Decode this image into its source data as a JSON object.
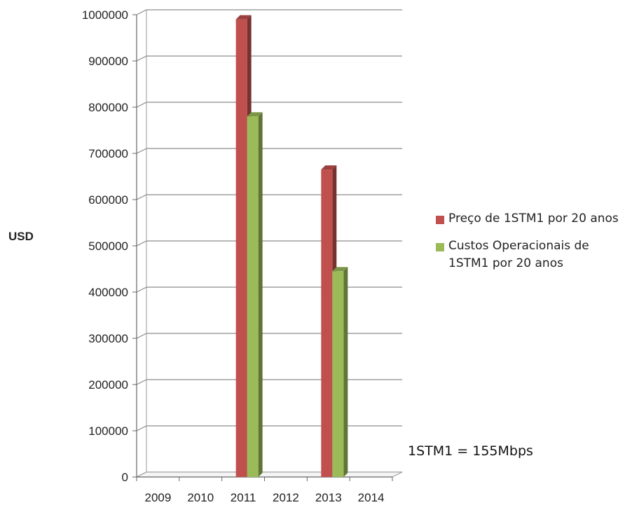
{
  "chart_data": {
    "type": "bar",
    "categories": [
      "2009",
      "2010",
      "2011",
      "2012",
      "2013",
      "2014"
    ],
    "ylabel": "USD",
    "xlabel": "",
    "ylim": [
      0,
      1000000
    ],
    "yticks": [
      0,
      100000,
      200000,
      300000,
      400000,
      500000,
      600000,
      700000,
      800000,
      900000,
      1000000
    ],
    "grid": true,
    "legend_position": "right",
    "series": [
      {
        "name": "Preço de 1STM1 por 20 anos",
        "color": "#c0504d",
        "values": [
          null,
          null,
          990000,
          null,
          665000,
          null
        ]
      },
      {
        "name": "Custos Operacionais de 1STM1 por 20 anos",
        "color": "#9bbb59",
        "values": [
          null,
          null,
          780000,
          null,
          445000,
          null
        ]
      }
    ]
  },
  "annotation": "1STM1 = 155Mbps"
}
